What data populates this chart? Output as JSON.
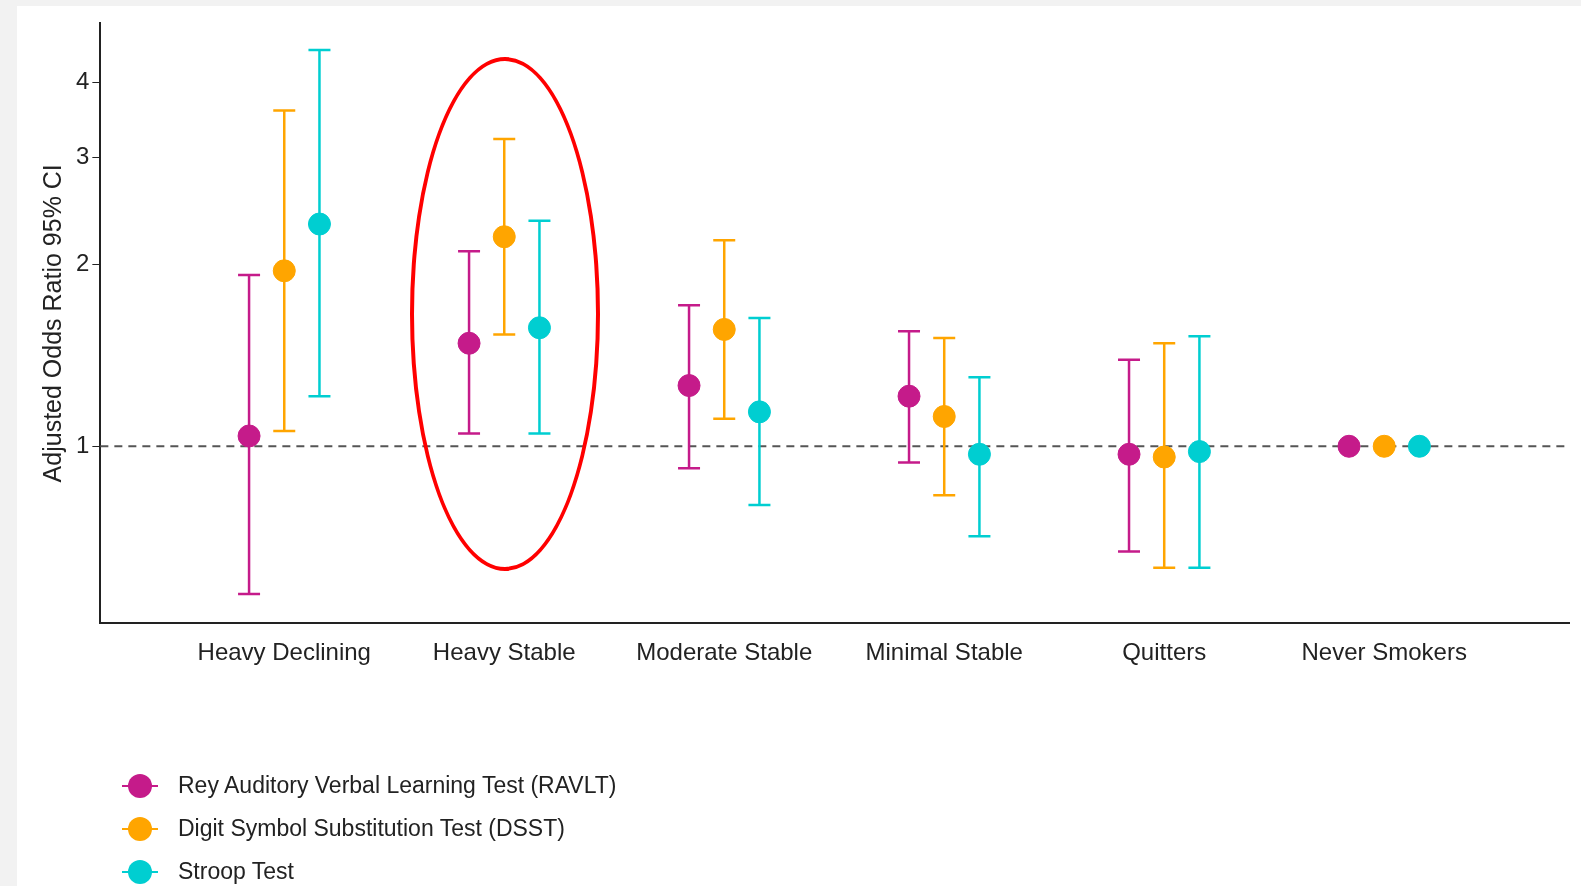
{
  "chart_data": {
    "type": "scatter",
    "ylabel": "Adjusted Odds Ratio 95% CI",
    "categories": [
      "Heavy Declining",
      "Heavy Stable",
      "Moderate Stable",
      "Minimal Stable",
      "Quitters",
      "Never Smokers"
    ],
    "series": [
      {
        "name": "Rey Auditory Verbal Learning Test (RAVLT)",
        "color": "#c51b8a",
        "values": [
          1.04,
          1.48,
          1.26,
          1.21,
          0.97,
          1
        ],
        "errors": [
          [
            0.57,
            1.92
          ],
          [
            1.05,
            2.1
          ],
          [
            0.92,
            1.71
          ],
          [
            0.94,
            1.55
          ],
          [
            0.67,
            1.39
          ],
          null
        ]
      },
      {
        "name": "Digit Symbol Substitution Test (DSST)",
        "color": "#ffa500",
        "values": [
          1.95,
          2.22,
          1.56,
          1.12,
          0.96,
          1
        ],
        "errors": [
          [
            1.06,
            3.59
          ],
          [
            1.53,
            3.22
          ],
          [
            1.11,
            2.19
          ],
          [
            0.83,
            1.51
          ],
          [
            0.63,
            1.48
          ],
          null
        ]
      },
      {
        "name": "Stroop Test",
        "color": "#00ced1",
        "values": [
          2.33,
          1.57,
          1.14,
          0.97,
          0.98,
          1
        ],
        "errors": [
          [
            1.21,
            4.52
          ],
          [
            1.05,
            2.36
          ],
          [
            0.8,
            1.63
          ],
          [
            0.71,
            1.3
          ],
          [
            0.63,
            1.52
          ],
          null
        ]
      }
    ],
    "log": "y",
    "ylim": [
      0.51,
      5
    ],
    "yticks": [
      1,
      2,
      3,
      4
    ],
    "ref_lines": [
      {
        "axis": "y",
        "value": 1,
        "color": "#555555",
        "line_style": "dashed"
      }
    ],
    "grid": false,
    "legend": "bottom left",
    "marker": "circle"
  }
}
